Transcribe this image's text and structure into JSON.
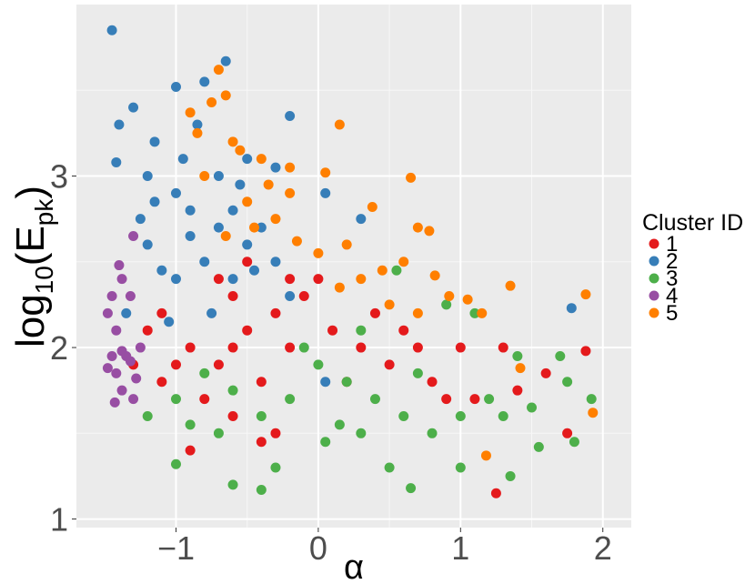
{
  "chart_data": {
    "type": "scatter",
    "xlabel": "α",
    "ylabel_main": "log",
    "ylabel_sub10": "10",
    "ylabel_paren_open": "(E",
    "ylabel_sub": "pk",
    "ylabel_paren_close": ")",
    "xlim": [
      -1.7,
      2.2
    ],
    "ylim": [
      0.95,
      4.0
    ],
    "x_ticks": [
      -1,
      0,
      1,
      2
    ],
    "x_tick_labels": [
      "−1",
      "0",
      "1",
      "2"
    ],
    "y_ticks": [
      1,
      2,
      3
    ],
    "y_tick_labels": [
      "1",
      "2",
      "3"
    ],
    "grid": true,
    "legend": {
      "title": "Cluster ID",
      "position": "right"
    },
    "series": [
      {
        "name": "1",
        "color": "#E41A1C",
        "points": [
          [
            -0.6,
            2.3
          ],
          [
            -0.5,
            2.1
          ],
          [
            -0.3,
            2.2
          ],
          [
            -0.7,
            1.9
          ],
          [
            -0.9,
            2.0
          ],
          [
            -1.1,
            2.2
          ],
          [
            -0.2,
            2.0
          ],
          [
            0.1,
            2.1
          ],
          [
            0.3,
            2.0
          ],
          [
            0.5,
            1.9
          ],
          [
            -0.4,
            1.8
          ],
          [
            -0.8,
            1.7
          ],
          [
            -1.0,
            1.9
          ],
          [
            -0.1,
            2.3
          ],
          [
            0.0,
            2.4
          ],
          [
            0.2,
            1.8
          ],
          [
            0.4,
            2.2
          ],
          [
            -0.6,
            1.6
          ],
          [
            -0.3,
            1.5
          ],
          [
            0.6,
            2.1
          ],
          [
            0.8,
            1.8
          ],
          [
            1.0,
            2.0
          ],
          [
            1.1,
            1.7
          ],
          [
            1.25,
            1.15
          ],
          [
            1.6,
            1.85
          ],
          [
            1.75,
            1.5
          ],
          [
            1.88,
            1.98
          ],
          [
            1.3,
            2.0
          ],
          [
            0.9,
            1.7
          ],
          [
            -0.2,
            2.4
          ],
          [
            -0.5,
            2.5
          ],
          [
            -0.7,
            2.4
          ],
          [
            -1.2,
            2.1
          ],
          [
            -1.3,
            1.9
          ],
          [
            -1.1,
            1.8
          ],
          [
            -0.9,
            1.4
          ],
          [
            -0.4,
            1.45
          ],
          [
            0.7,
            2.0
          ],
          [
            1.4,
            1.75
          ],
          [
            -0.6,
            2.0
          ]
        ]
      },
      {
        "name": "2",
        "color": "#377EB8",
        "points": [
          [
            -1.45,
            3.85
          ],
          [
            -0.65,
            3.67
          ],
          [
            -0.8,
            3.55
          ],
          [
            -1.0,
            3.52
          ],
          [
            -1.4,
            3.3
          ],
          [
            -1.3,
            3.4
          ],
          [
            -1.15,
            3.2
          ],
          [
            -1.2,
            3.0
          ],
          [
            -1.0,
            2.9
          ],
          [
            -0.9,
            2.8
          ],
          [
            -0.7,
            2.7
          ],
          [
            -0.5,
            2.6
          ],
          [
            -0.8,
            2.5
          ],
          [
            -1.0,
            2.4
          ],
          [
            -1.2,
            2.6
          ],
          [
            -0.6,
            2.8
          ],
          [
            -0.4,
            2.7
          ],
          [
            -0.3,
            2.5
          ],
          [
            -0.2,
            2.3
          ],
          [
            -1.1,
            2.45
          ],
          [
            -0.9,
            2.65
          ],
          [
            -0.7,
            3.0
          ],
          [
            -0.5,
            3.1
          ],
          [
            -0.3,
            3.05
          ],
          [
            -0.2,
            3.35
          ],
          [
            0.05,
            2.9
          ],
          [
            0.3,
            2.75
          ],
          [
            1.78,
            2.23
          ],
          [
            0.05,
            1.8
          ],
          [
            -1.35,
            2.2
          ],
          [
            -1.25,
            2.75
          ],
          [
            -1.42,
            3.08
          ],
          [
            -0.85,
            3.3
          ],
          [
            -0.6,
            2.4
          ],
          [
            -0.45,
            2.45
          ],
          [
            -1.05,
            2.15
          ],
          [
            -0.75,
            2.2
          ],
          [
            -1.15,
            2.85
          ],
          [
            -0.55,
            2.95
          ],
          [
            -0.95,
            3.1
          ]
        ]
      },
      {
        "name": "3",
        "color": "#4DAF4A",
        "points": [
          [
            -0.6,
            1.2
          ],
          [
            -1.0,
            1.32
          ],
          [
            -0.4,
            1.17
          ],
          [
            0.05,
            1.45
          ],
          [
            0.3,
            1.5
          ],
          [
            0.5,
            1.3
          ],
          [
            0.65,
            1.18
          ],
          [
            1.0,
            1.3
          ],
          [
            1.35,
            1.25
          ],
          [
            1.55,
            1.42
          ],
          [
            1.8,
            1.45
          ],
          [
            1.92,
            1.7
          ],
          [
            1.75,
            1.8
          ],
          [
            1.5,
            1.65
          ],
          [
            1.2,
            1.7
          ],
          [
            1.0,
            1.6
          ],
          [
            0.8,
            1.5
          ],
          [
            0.6,
            1.6
          ],
          [
            0.4,
            1.7
          ],
          [
            0.2,
            1.8
          ],
          [
            0.0,
            1.9
          ],
          [
            -0.2,
            1.7
          ],
          [
            -0.4,
            1.6
          ],
          [
            -0.6,
            1.75
          ],
          [
            -0.8,
            1.85
          ],
          [
            -1.0,
            1.7
          ],
          [
            -1.2,
            1.6
          ],
          [
            0.9,
            2.25
          ],
          [
            1.1,
            2.2
          ],
          [
            0.55,
            2.45
          ],
          [
            0.3,
            2.1
          ],
          [
            -0.1,
            2.0
          ],
          [
            1.4,
            1.95
          ],
          [
            1.7,
            1.95
          ],
          [
            -0.3,
            1.3
          ],
          [
            -0.7,
            1.5
          ],
          [
            0.7,
            1.85
          ],
          [
            1.3,
            1.6
          ],
          [
            0.15,
            1.55
          ],
          [
            -0.9,
            1.55
          ]
        ]
      },
      {
        "name": "4",
        "color": "#984EA3",
        "points": [
          [
            -1.45,
            2.3
          ],
          [
            -1.4,
            2.48
          ],
          [
            -1.38,
            2.4
          ],
          [
            -1.32,
            2.3
          ],
          [
            -1.48,
            2.2
          ],
          [
            -1.42,
            2.1
          ],
          [
            -1.38,
            1.98
          ],
          [
            -1.45,
            1.95
          ],
          [
            -1.48,
            1.88
          ],
          [
            -1.42,
            1.85
          ],
          [
            -1.32,
            1.92
          ],
          [
            -1.28,
            1.82
          ],
          [
            -1.38,
            1.75
          ],
          [
            -1.43,
            1.68
          ],
          [
            -1.3,
            1.7
          ],
          [
            -1.35,
            1.95
          ],
          [
            -1.25,
            2.0
          ],
          [
            -1.3,
            2.65
          ]
        ]
      },
      {
        "name": "5",
        "color": "#FF7F00",
        "points": [
          [
            -0.7,
            3.62
          ],
          [
            -0.65,
            3.47
          ],
          [
            -0.75,
            3.43
          ],
          [
            -0.9,
            3.37
          ],
          [
            -0.85,
            3.25
          ],
          [
            -0.6,
            3.2
          ],
          [
            -0.55,
            3.15
          ],
          [
            -0.4,
            3.1
          ],
          [
            -0.2,
            3.05
          ],
          [
            0.05,
            3.02
          ],
          [
            0.15,
            3.3
          ],
          [
            0.65,
            2.99
          ],
          [
            0.38,
            2.82
          ],
          [
            0.7,
            2.7
          ],
          [
            0.78,
            2.68
          ],
          [
            0.6,
            2.5
          ],
          [
            0.45,
            2.45
          ],
          [
            0.3,
            2.4
          ],
          [
            0.15,
            2.35
          ],
          [
            0.0,
            2.55
          ],
          [
            -0.15,
            2.62
          ],
          [
            -0.3,
            2.75
          ],
          [
            -0.45,
            2.7
          ],
          [
            -0.65,
            2.65
          ],
          [
            0.82,
            2.42
          ],
          [
            0.92,
            2.3
          ],
          [
            1.05,
            2.28
          ],
          [
            1.15,
            2.2
          ],
          [
            1.35,
            2.36
          ],
          [
            1.42,
            1.88
          ],
          [
            1.18,
            1.37
          ],
          [
            1.88,
            2.31
          ],
          [
            1.93,
            1.62
          ],
          [
            -0.2,
            2.9
          ],
          [
            -0.35,
            2.95
          ],
          [
            0.2,
            2.6
          ],
          [
            0.5,
            2.25
          ],
          [
            0.7,
            2.2
          ],
          [
            -0.5,
            2.85
          ],
          [
            -0.8,
            3.0
          ]
        ]
      }
    ]
  }
}
